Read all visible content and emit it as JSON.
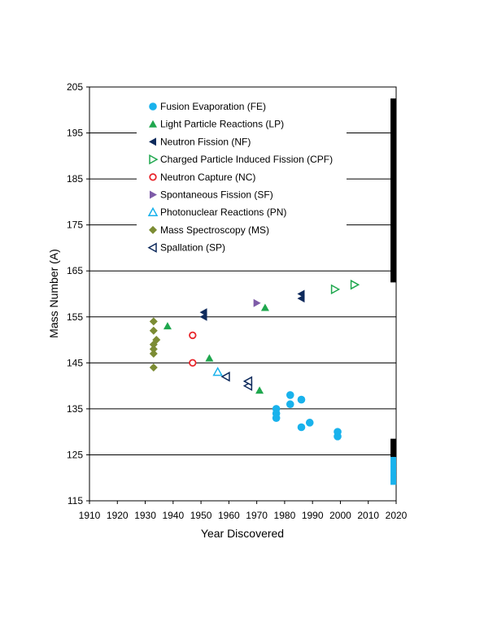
{
  "chart_data": {
    "type": "scatter",
    "title": "",
    "xlabel": "Year Discovered",
    "ylabel": "Mass Number (A)",
    "xlim": [
      1910,
      2020
    ],
    "ylim": [
      115,
      205
    ],
    "xticks": [
      1910,
      1920,
      1930,
      1940,
      1950,
      1960,
      1970,
      1980,
      1990,
      2000,
      2010,
      2020
    ],
    "yticks": [
      115,
      125,
      135,
      145,
      155,
      165,
      175,
      185,
      195,
      205
    ],
    "grid": "horizontal",
    "legend": "top-left",
    "series": [
      {
        "name": "Fusion Evaporation (FE)",
        "marker": "circle-filled",
        "color": "#19B2EC",
        "points": [
          [
            1977,
            133
          ],
          [
            1977,
            134
          ],
          [
            1977,
            135
          ],
          [
            1982,
            136
          ],
          [
            1982,
            138
          ],
          [
            1986,
            137
          ],
          [
            1986,
            131
          ],
          [
            1989,
            132
          ],
          [
            1999,
            129
          ],
          [
            1999,
            130
          ]
        ]
      },
      {
        "name": "Light Particle Reactions (LP)",
        "marker": "triangle-up-filled",
        "color": "#1FA74E",
        "points": [
          [
            1938,
            153
          ],
          [
            1953,
            146
          ],
          [
            1971,
            139
          ],
          [
            1973,
            157
          ]
        ]
      },
      {
        "name": "Neutron Fission (NF)",
        "marker": "triangle-left-filled",
        "color": "#0E2A5C",
        "points": [
          [
            1951,
            155
          ],
          [
            1951,
            156
          ],
          [
            1986,
            159
          ],
          [
            1986,
            160
          ]
        ]
      },
      {
        "name": "Charged Particle Induced Fission (CPF)",
        "marker": "triangle-right-open",
        "color": "#1FA74E",
        "points": [
          [
            1998,
            161
          ],
          [
            2005,
            162
          ]
        ]
      },
      {
        "name": "Neutron Capture (NC)",
        "marker": "circle-open",
        "color": "#E8252B",
        "points": [
          [
            1947,
            145
          ],
          [
            1947,
            151
          ]
        ]
      },
      {
        "name": "Spontaneous Fission (SF)",
        "marker": "triangle-right-filled",
        "color": "#7E5BA8",
        "points": [
          [
            1970,
            158
          ]
        ]
      },
      {
        "name": "Photonuclear Reactions (PN)",
        "marker": "triangle-up-open",
        "color": "#19B2EC",
        "points": [
          [
            1956,
            143
          ]
        ]
      },
      {
        "name": "Mass Spectroscopy (MS)",
        "marker": "diamond-filled",
        "color": "#7C8C34",
        "points": [
          [
            1933,
            144
          ],
          [
            1933,
            147
          ],
          [
            1933,
            148
          ],
          [
            1933,
            149
          ],
          [
            1933,
            152
          ],
          [
            1933,
            154
          ],
          [
            1934,
            150
          ]
        ]
      },
      {
        "name": "Spallation (SP)",
        "marker": "triangle-left-open",
        "color": "#0E2A5C",
        "points": [
          [
            1959,
            142
          ],
          [
            1967,
            140
          ],
          [
            1967,
            141
          ]
        ]
      },
      {
        "name": "",
        "marker": "square-filled",
        "color": "#19B2EC",
        "points": [
          [
            2019,
            119
          ],
          [
            2019,
            120
          ],
          [
            2019,
            121
          ],
          [
            2019,
            122
          ],
          [
            2019,
            123
          ],
          [
            2019,
            124
          ]
        ]
      }
    ],
    "bars": [
      {
        "x": 2019,
        "y_from": 162.5,
        "y_to": 202.5,
        "color": "#000000"
      },
      {
        "x": 2019,
        "y_from": 124.5,
        "y_to": 128.5,
        "color": "#000000"
      }
    ]
  }
}
